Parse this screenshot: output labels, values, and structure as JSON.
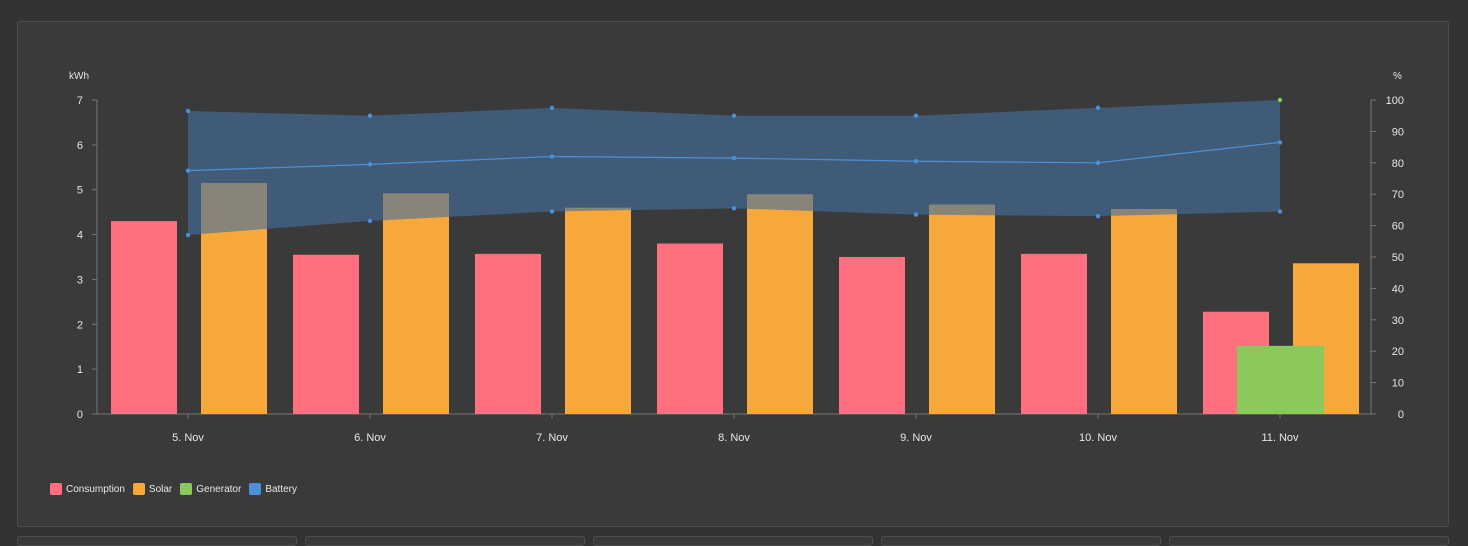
{
  "chart_data": {
    "type": "bar",
    "categories": [
      "5. Nov",
      "6. Nov",
      "7. Nov",
      "8. Nov",
      "9. Nov",
      "10. Nov",
      "11. Nov"
    ],
    "y_left": {
      "unit_label": "kWh",
      "ticks": [
        "0",
        "1",
        "2",
        "3",
        "4",
        "5",
        "6",
        "7"
      ],
      "ylim": [
        0,
        7
      ]
    },
    "y_right": {
      "unit_label": "%",
      "ticks": [
        "0",
        "10",
        "20",
        "30",
        "40",
        "50",
        "60",
        "70",
        "80",
        "90",
        "100"
      ],
      "ylim": [
        0,
        100
      ]
    },
    "series": [
      {
        "name": "Consumption",
        "type": "bar",
        "axis": "left",
        "color": "#ff6f7d",
        "values": [
          4.3,
          3.55,
          3.57,
          3.8,
          3.5,
          3.57,
          2.28
        ]
      },
      {
        "name": "Solar",
        "type": "bar",
        "axis": "left",
        "color": "#f7a83a",
        "values": [
          5.15,
          4.92,
          4.6,
          4.9,
          4.67,
          4.57,
          3.36
        ]
      },
      {
        "name": "Generator",
        "type": "bar",
        "axis": "left",
        "color": "#8bc95c",
        "values": [
          0,
          0,
          0,
          0,
          0,
          0,
          1.52
        ]
      },
      {
        "name": "Battery",
        "type": "area-range",
        "axis": "right",
        "color": "#4a90d9",
        "min": [
          57,
          61.5,
          64.5,
          65.5,
          63.5,
          63,
          64.5
        ],
        "avg": [
          77.5,
          79.5,
          82,
          81.5,
          80.5,
          80,
          86.5
        ],
        "max": [
          96.5,
          95,
          97.5,
          95,
          95,
          97.5,
          100
        ]
      }
    ],
    "legend": [
      "Consumption",
      "Solar",
      "Generator",
      "Battery"
    ],
    "legend_position": "bottom-left",
    "grid": false
  }
}
